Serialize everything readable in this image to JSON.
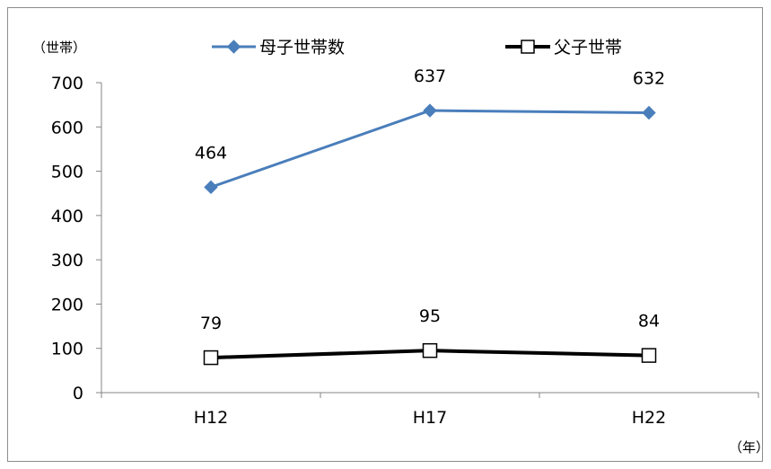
{
  "chart_data": {
    "type": "line",
    "categories": [
      "H12",
      "H17",
      "H22"
    ],
    "series": [
      {
        "name": "母子世帯数",
        "values": [
          464,
          637,
          632
        ],
        "color": "#4a7ebb",
        "marker": "diamond"
      },
      {
        "name": "父子世帯",
        "values": [
          79,
          95,
          84
        ],
        "color": "#000000",
        "marker": "square-open"
      }
    ],
    "y_unit_label": "（世帯）",
    "x_unit_label": "（年）",
    "ylim": [
      0,
      700
    ],
    "yticks": [
      0,
      100,
      200,
      300,
      400,
      500,
      600,
      700
    ],
    "grid": false,
    "legend_position": "top"
  }
}
